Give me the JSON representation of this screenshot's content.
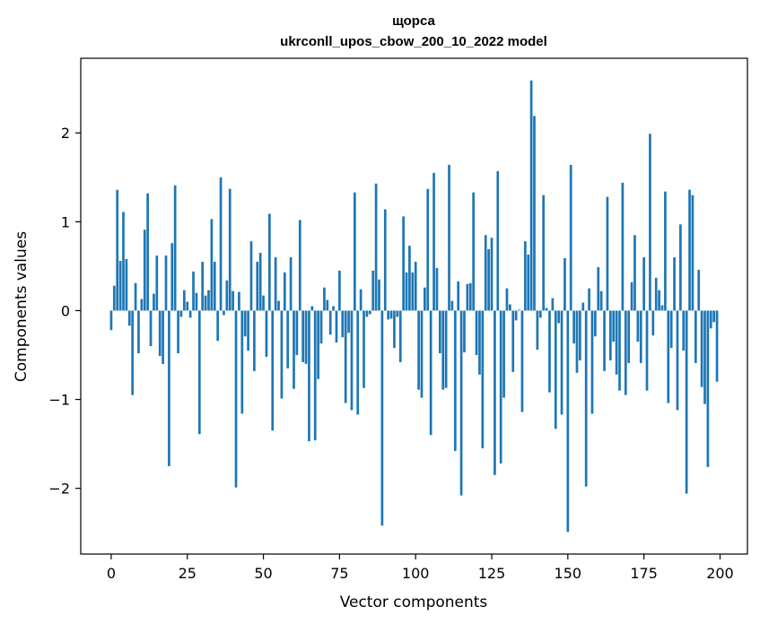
{
  "chart_data": {
    "type": "bar",
    "title": "щорса",
    "subtitle": "ukrconll_upos_cbow_200_10_2022 model",
    "xlabel": "Vector components",
    "ylabel": "Components values",
    "xlim": [
      -10,
      209
    ],
    "ylim": [
      -2.74,
      2.84
    ],
    "xticks": [
      0,
      25,
      50,
      75,
      100,
      125,
      150,
      175,
      200
    ],
    "xtick_labels": [
      "0",
      "25",
      "50",
      "75",
      "100",
      "125",
      "150",
      "175",
      "200"
    ],
    "yticks": [
      -2,
      -1,
      0,
      1,
      2
    ],
    "ytick_labels": [
      "−2",
      "−1",
      "0",
      "1",
      "2"
    ],
    "bar_color": "#1f77b4",
    "grid": false,
    "legend": "none",
    "x": [
      0,
      1,
      2,
      3,
      4,
      5,
      6,
      7,
      8,
      9,
      10,
      11,
      12,
      13,
      14,
      15,
      16,
      17,
      18,
      19,
      20,
      21,
      22,
      23,
      24,
      25,
      26,
      27,
      28,
      29,
      30,
      31,
      32,
      33,
      34,
      35,
      36,
      37,
      38,
      39,
      40,
      41,
      42,
      43,
      44,
      45,
      46,
      47,
      48,
      49,
      50,
      51,
      52,
      53,
      54,
      55,
      56,
      57,
      58,
      59,
      60,
      61,
      62,
      63,
      64,
      65,
      66,
      67,
      68,
      69,
      70,
      71,
      72,
      73,
      74,
      75,
      76,
      77,
      78,
      79,
      80,
      81,
      82,
      83,
      84,
      85,
      86,
      87,
      88,
      89,
      90,
      91,
      92,
      93,
      94,
      95,
      96,
      97,
      98,
      99,
      100,
      101,
      102,
      103,
      104,
      105,
      106,
      107,
      108,
      109,
      110,
      111,
      112,
      113,
      114,
      115,
      116,
      117,
      118,
      119,
      120,
      121,
      122,
      123,
      124,
      125,
      126,
      127,
      128,
      129,
      130,
      131,
      132,
      133,
      134,
      135,
      136,
      137,
      138,
      139,
      140,
      141,
      142,
      143,
      144,
      145,
      146,
      147,
      148,
      149,
      150,
      151,
      152,
      153,
      154,
      155,
      156,
      157,
      158,
      159,
      160,
      161,
      162,
      163,
      164,
      165,
      166,
      167,
      168,
      169,
      170,
      171,
      172,
      173,
      174,
      175,
      176,
      177,
      178,
      179,
      180,
      181,
      182,
      183,
      184,
      185,
      186,
      187,
      188,
      189,
      190,
      191,
      192,
      193,
      194,
      195,
      196,
      197,
      198,
      199
    ],
    "values": [
      -0.22,
      0.28,
      1.36,
      0.56,
      1.11,
      0.58,
      -0.17,
      -0.95,
      0.31,
      -0.48,
      0.13,
      0.91,
      1.32,
      -0.4,
      0.19,
      0.62,
      -0.51,
      -0.6,
      0.62,
      -1.75,
      0.76,
      1.41,
      -0.48,
      -0.07,
      0.23,
      0.1,
      -0.08,
      0.44,
      0.2,
      -1.39,
      0.55,
      0.17,
      0.23,
      1.03,
      0.55,
      -0.34,
      1.5,
      -0.05,
      0.34,
      1.37,
      0.22,
      -1.99,
      0.21,
      -1.16,
      -0.29,
      -0.45,
      0.78,
      -0.68,
      0.55,
      0.65,
      0.17,
      -0.52,
      1.09,
      -1.35,
      0.6,
      0.11,
      -0.99,
      0.43,
      -0.65,
      0.6,
      -0.88,
      -0.5,
      1.02,
      -0.58,
      -0.6,
      -1.47,
      0.05,
      -1.46,
      -0.77,
      -0.37,
      0.26,
      0.12,
      -0.27,
      0.05,
      -0.36,
      0.45,
      -0.3,
      -1.04,
      -0.25,
      -1.12,
      1.33,
      -1.17,
      0.24,
      -0.87,
      -0.07,
      -0.04,
      0.45,
      1.43,
      0.35,
      -2.42,
      1.14,
      -0.1,
      -0.09,
      -0.42,
      -0.07,
      -0.58,
      1.06,
      0.43,
      0.73,
      0.43,
      0.55,
      -0.89,
      -0.98,
      0.26,
      1.37,
      -1.4,
      1.55,
      0.48,
      -0.48,
      -0.89,
      -0.87,
      1.64,
      0.11,
      -1.58,
      0.33,
      -2.08,
      -0.47,
      0.3,
      0.31,
      1.33,
      -0.5,
      -0.72,
      -1.55,
      0.85,
      0.69,
      0.82,
      -1.85,
      1.57,
      -1.72,
      -0.98,
      0.25,
      0.07,
      -0.69,
      -0.11,
      0.01,
      -1.14,
      0.78,
      0.63,
      2.59,
      2.19,
      -0.44,
      -0.08,
      1.3,
      0.03,
      -0.92,
      0.14,
      -1.33,
      -0.14,
      -1.17,
      0.59,
      -2.49,
      1.64,
      -0.37,
      -0.7,
      -0.56,
      0.09,
      -1.98,
      0.25,
      -1.16,
      -0.29,
      0.49,
      0.22,
      -0.68,
      1.28,
      -0.56,
      -0.35,
      -0.72,
      -0.9,
      1.44,
      -0.95,
      -0.59,
      0.32,
      0.85,
      -0.35,
      -0.59,
      0.6,
      -0.9,
      1.99,
      -0.28,
      0.37,
      0.23,
      0.06,
      1.34,
      -1.04,
      -0.42,
      0.6,
      -1.12,
      0.97,
      -0.45,
      -2.06,
      1.36,
      1.3,
      -0.59,
      0.46,
      -0.86,
      -1.05,
      -1.76,
      -0.2,
      -0.13,
      -0.8
    ]
  }
}
